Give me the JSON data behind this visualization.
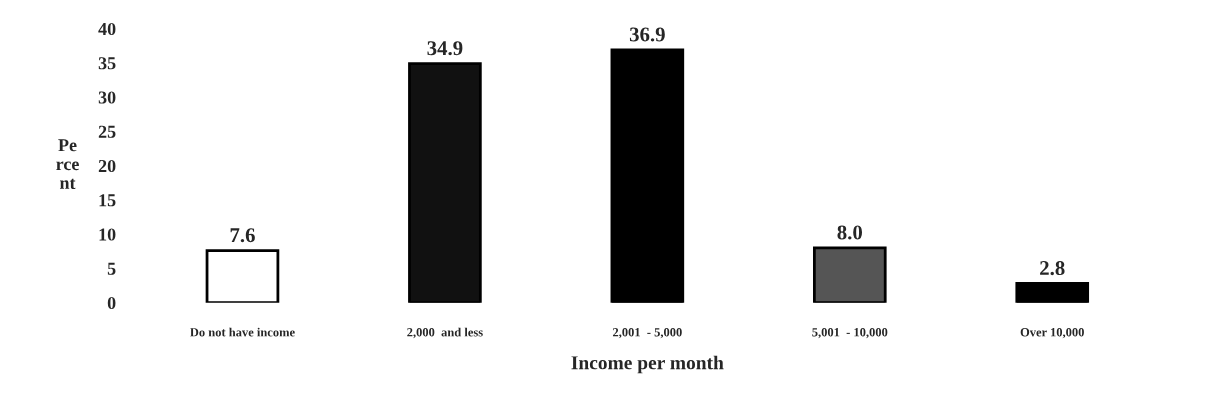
{
  "chart_data": {
    "type": "bar",
    "xlabel": "Income per month",
    "ylabel": "Pe\nrce\nnt",
    "categories": [
      "Do not have income",
      "2,000  and less",
      "2,001  - 5,000",
      "5,001  - 10,000",
      "Over 10,000"
    ],
    "values": [
      7.6,
      34.9,
      36.9,
      8.0,
      2.8
    ],
    "value_labels": [
      "7.6",
      "34.9",
      "36.9",
      "8.0",
      "2.8"
    ],
    "colors": [
      "#ffffff",
      "#111111",
      "#000000",
      "#555555",
      "#000000"
    ],
    "ylim": [
      0,
      40
    ],
    "yticks": [
      0,
      5,
      10,
      15,
      20,
      25,
      30,
      35,
      40
    ],
    "grid": false,
    "legend": false
  }
}
